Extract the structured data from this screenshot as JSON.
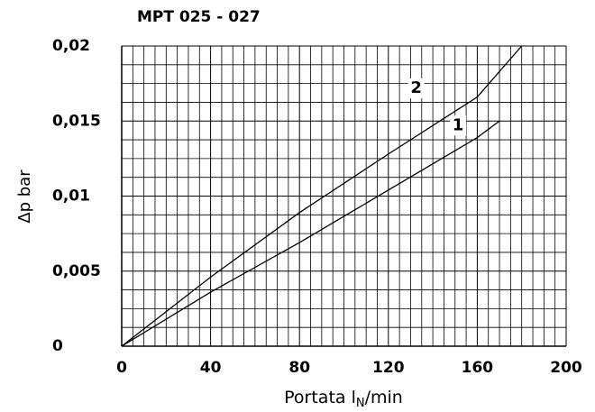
{
  "chart_data": {
    "type": "line",
    "title": "MPT 025 - 027",
    "xlabel": {
      "text": "Portata l",
      "sub": "N",
      "rest": "/min"
    },
    "ylabel": "Δp bar",
    "series": [
      {
        "name": "1",
        "color": "#000000",
        "x": [
          0,
          40,
          80,
          120,
          160,
          170
        ],
        "values": [
          0,
          0.0036,
          0.0069,
          0.0104,
          0.0139,
          0.015
        ]
      },
      {
        "name": "2",
        "color": "#000000",
        "x": [
          0,
          40,
          80,
          120,
          160,
          180
        ],
        "values": [
          0,
          0.0046,
          0.0089,
          0.0128,
          0.0166,
          0.02
        ]
      }
    ],
    "xlim": [
      0,
      200
    ],
    "xticks": [
      0,
      40,
      80,
      120,
      160,
      200
    ],
    "ylim": [
      0,
      0.02
    ],
    "yticks": [
      0,
      {
        "value": 0.005,
        "label": "0,005"
      },
      {
        "value": 0.01,
        "label": "0,01"
      },
      {
        "value": 0.015,
        "label": "0,015"
      },
      {
        "value": 0.02,
        "label": "0,02"
      }
    ],
    "grid": true
  }
}
